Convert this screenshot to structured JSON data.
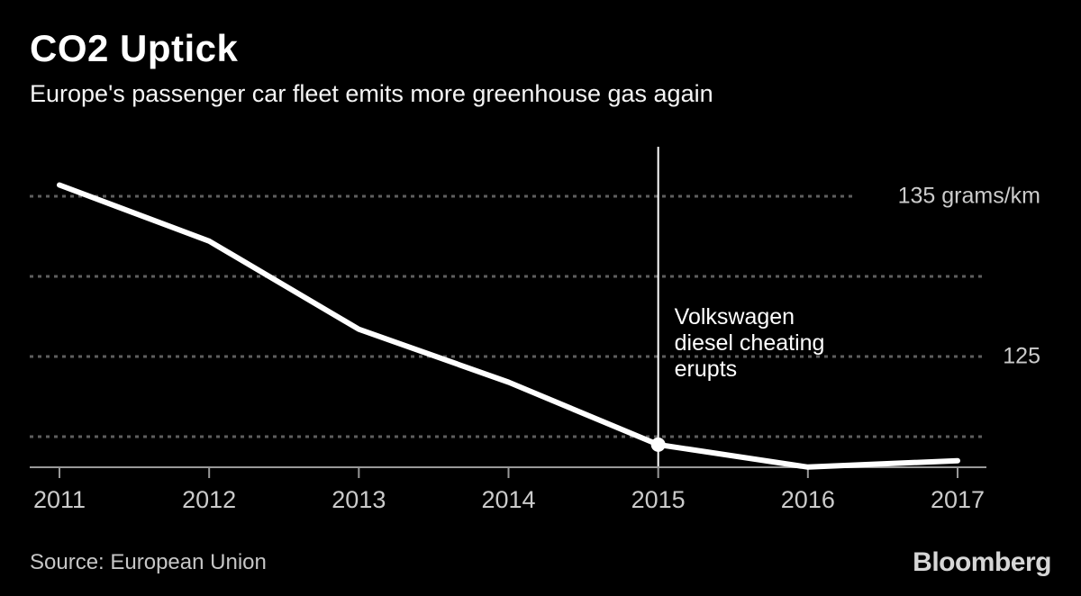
{
  "header": {
    "title": "CO2 Uptick",
    "subtitle": "Europe's passenger car fleet emits more greenhouse gas again"
  },
  "chart_data": {
    "type": "line",
    "title": "CO2 Uptick",
    "subtitle": "Europe's passenger car fleet emits more greenhouse gas again",
    "unit": "grams/km",
    "categories": [
      "2011",
      "2012",
      "2013",
      "2014",
      "2015",
      "2016",
      "2017"
    ],
    "series": [
      {
        "values": [
          135.7,
          132.2,
          126.7,
          123.4,
          119.5,
          118.1,
          118.5
        ]
      }
    ],
    "ylim": [
      117.5,
      137
    ],
    "grid": "dotted horizontal gridlines, on",
    "legend": "none",
    "y_gridlines": [
      {
        "value": 135,
        "label": "135 grams/km"
      },
      {
        "value": 130,
        "label": ""
      },
      {
        "value": 125,
        "label": "125"
      },
      {
        "value": 120,
        "label": ""
      }
    ],
    "annotation": {
      "year": "2015",
      "lines": [
        "Volkswagen",
        "diesel cheating",
        "erupts"
      ],
      "marker_value": 119.5,
      "has_vertical_line": true
    }
  },
  "footer": {
    "source": "Source: European Union",
    "logo": "Bloomberg"
  },
  "colors": {
    "background": "#000000",
    "title": "#ffffff",
    "subtitle": "#f5f5f5",
    "line": "#ffffff",
    "grid": "#5e5e5e",
    "axis": "#989898",
    "tick_label": "#cbcbcb",
    "annotation": "#ffffff",
    "source": "#c6c6c6",
    "logo": "#d6d6d6"
  }
}
